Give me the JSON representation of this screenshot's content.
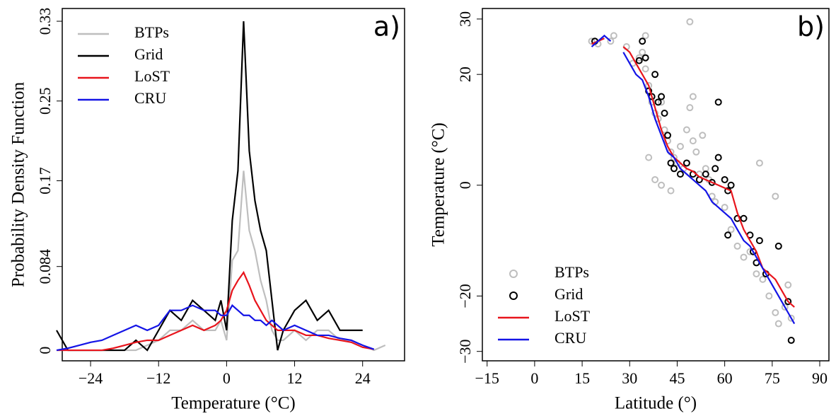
{
  "chart_data": [
    {
      "type": "line",
      "panel_label": "a)",
      "xlabel": "Temperature (°C)",
      "ylabel": "Probability Density Function",
      "x": [
        -30,
        -28,
        -26,
        -24,
        -22,
        -20,
        -18,
        -16,
        -14,
        -12,
        -10,
        -8,
        -6,
        -4,
        -2,
        -1,
        0,
        1,
        2,
        3,
        4,
        5,
        6,
        7,
        8,
        9,
        10,
        12,
        14,
        16,
        18,
        20,
        22,
        24,
        26,
        28
      ],
      "series": [
        {
          "name": "BTPs",
          "color": "#bebebe",
          "values": [
            0,
            0,
            0,
            0,
            0,
            0,
            0,
            0,
            0.005,
            0.01,
            0.02,
            0.02,
            0.03,
            0.02,
            0.02,
            0.03,
            0.01,
            0.09,
            0.1,
            0.18,
            0.12,
            0.1,
            0.07,
            0.05,
            0.02,
            0.01,
            0.01,
            0.02,
            0.01,
            0.02,
            0.02,
            0.01,
            0.01,
            0.005,
            0,
            0.005
          ]
        },
        {
          "name": "Grid",
          "color": "#000000",
          "values": [
            0.02,
            0,
            0,
            0,
            0,
            0,
            0,
            0.01,
            0,
            0.02,
            0.04,
            0.03,
            0.05,
            0.04,
            0.03,
            0.05,
            0.02,
            0.13,
            0.18,
            0.33,
            0.2,
            0.15,
            0.12,
            0.1,
            0.05,
            0,
            0.02,
            0.04,
            0.05,
            0.03,
            0.04,
            0.02,
            0.02,
            0.02,
            null,
            null
          ]
        },
        {
          "name": "LoST",
          "color": "#e8141c",
          "values": [
            0,
            0,
            0,
            0,
            0,
            0.002,
            0.005,
            0.008,
            0.01,
            0.01,
            0.015,
            0.02,
            0.025,
            0.02,
            0.025,
            0.03,
            0.04,
            0.06,
            0.07,
            0.078,
            0.065,
            0.05,
            0.04,
            0.03,
            0.025,
            0.02,
            0.02,
            0.02,
            0.015,
            0.015,
            0.012,
            0.01,
            0.008,
            0.003,
            0.001,
            null
          ]
        },
        {
          "name": "CRU",
          "color": "#1414e6",
          "values": [
            0,
            0.002,
            0.005,
            0.008,
            0.01,
            0.015,
            0.02,
            0.025,
            0.02,
            0.025,
            0.04,
            0.04,
            0.045,
            0.04,
            0.04,
            0.035,
            0.035,
            0.045,
            0.04,
            0.035,
            0.035,
            0.03,
            0.03,
            0.025,
            0.03,
            0.025,
            0.02,
            0.025,
            0.02,
            0.015,
            0.015,
            0.012,
            0.01,
            0.005,
            0.001,
            null
          ]
        }
      ],
      "xlim": [
        -29,
        31.4
      ],
      "ylim": [
        -0.0106,
        0.3428
      ],
      "xticks": [
        {
          "value": -24,
          "label": "−24"
        },
        {
          "value": -12,
          "label": "−12"
        },
        0,
        12,
        24
      ],
      "yticks": [
        0,
        0.084,
        0.17,
        0.25,
        0.33
      ],
      "legend": "top-left"
    },
    {
      "type": "scatter",
      "panel_label": "b)",
      "xlabel": "Latitude (°)",
      "ylabel": "Temperature (°C)",
      "series": [
        {
          "name": "BTPs",
          "color": "#bebebe",
          "marker": "circle",
          "x": [
            18,
            20,
            24,
            25,
            29,
            31,
            33,
            34,
            35,
            36,
            37,
            38,
            39,
            40,
            41,
            42,
            43,
            44,
            45,
            46,
            47,
            48,
            49,
            50,
            50,
            51,
            52,
            53,
            54,
            55,
            56,
            57,
            58,
            36,
            38,
            40,
            43,
            60,
            62,
            64,
            66,
            68,
            70,
            72,
            74,
            76,
            77,
            79,
            80,
            81,
            71,
            76,
            49,
            35
          ],
          "values": [
            26,
            25.5,
            26,
            27,
            25,
            22,
            23,
            24,
            21,
            18,
            15,
            13,
            12,
            15,
            10,
            8,
            6,
            5,
            4,
            7,
            3,
            10,
            14,
            16,
            8,
            6,
            2,
            9,
            3,
            1,
            -2,
            -3,
            5,
            5,
            1,
            0,
            -1,
            -4,
            -8,
            -11,
            -13,
            -12,
            -16,
            -17,
            -20,
            -23,
            -25,
            -22,
            -18,
            -24,
            4,
            -2,
            29.5,
            27
          ]
        },
        {
          "name": "Grid",
          "color": "#000000",
          "marker": "circle",
          "x": [
            19,
            33,
            34,
            35,
            36,
            37,
            38,
            39,
            40,
            41,
            42,
            43,
            44,
            46,
            48,
            50,
            52,
            54,
            56,
            58,
            58,
            60,
            61,
            62,
            64,
            66,
            68,
            69,
            70,
            71,
            73,
            77,
            80,
            81,
            57,
            61
          ],
          "values": [
            26,
            22.5,
            26,
            23,
            17,
            16,
            20,
            15,
            16,
            13,
            9,
            4,
            3,
            2,
            4,
            2,
            1,
            2,
            0.5,
            15,
            5,
            1,
            -1,
            0,
            -6,
            -6,
            -9,
            -12,
            -14,
            -10,
            -16,
            -11,
            -21,
            -28,
            3,
            -9
          ]
        },
        {
          "name": "LoST",
          "color": "#e8141c",
          "marker": "line",
          "x": [
            18,
            20,
            22,
            24,
            26,
            28,
            30,
            32,
            34,
            36,
            38,
            40,
            42,
            44,
            46,
            48,
            50,
            52,
            54,
            56,
            58,
            60,
            62,
            64,
            66,
            68,
            70,
            72,
            74,
            76,
            78,
            80,
            82
          ],
          "values": [
            25.5,
            26,
            26.5,
            null,
            null,
            25,
            24,
            22,
            20,
            18,
            14,
            10,
            7,
            5,
            4,
            3,
            2.5,
            1.5,
            1,
            0.5,
            0,
            -0.5,
            -1,
            -5,
            -8,
            -10,
            -12,
            -15,
            -16,
            -17,
            -19,
            -21,
            -22
          ]
        },
        {
          "name": "CRU",
          "color": "#1414e6",
          "marker": "line",
          "x": [
            18,
            20,
            22,
            24,
            26,
            28,
            30,
            32,
            34,
            36,
            38,
            40,
            42,
            44,
            46,
            48,
            50,
            52,
            54,
            56,
            58,
            60,
            62,
            64,
            66,
            68,
            70,
            72,
            74,
            76,
            78,
            80,
            82
          ],
          "values": [
            25,
            26,
            27,
            26,
            null,
            24,
            22,
            20,
            19,
            16,
            12,
            9,
            6,
            5,
            3,
            2,
            1,
            0,
            -1,
            -3,
            -4,
            -5,
            -6,
            -8,
            -10,
            -11,
            -13,
            -15,
            -17,
            -19,
            -21,
            -23,
            -25
          ]
        }
      ],
      "xlim": [
        -16.5,
        92.9
      ],
      "ylim": [
        -31.7,
        31.9
      ],
      "xticks": [
        {
          "value": -15,
          "label": "−15"
        },
        0,
        15,
        30,
        45,
        60,
        75,
        90
      ],
      "yticks": [
        {
          "value": -30,
          "label": "−30"
        },
        {
          "value": -20,
          "label": "−20"
        },
        0,
        20,
        30
      ],
      "legend": "bottom-left"
    }
  ]
}
